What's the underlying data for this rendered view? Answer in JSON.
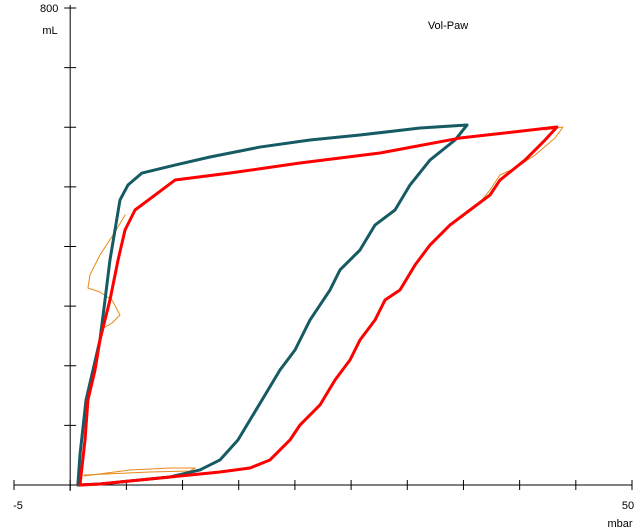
{
  "chart_data": {
    "type": "line",
    "title": "Vol-Paw",
    "x_label": "mbar",
    "y_label": "mL",
    "xlim": [
      -5,
      50
    ],
    "ylim": [
      0,
      800
    ],
    "xticks": [
      -5,
      0,
      5,
      10,
      15,
      20,
      25,
      30,
      35,
      40,
      45,
      50
    ],
    "yticks": [
      0,
      100,
      200,
      300,
      400,
      500,
      600,
      700,
      800
    ],
    "series": [
      {
        "color": "#165a63",
        "width": 3,
        "x": [
          0.69,
          0.87,
          1.41,
          2.03,
          2.65,
          3.1,
          3.54,
          3.99,
          4.43,
          5.14,
          6.39,
          9.33,
          12.44,
          16.89,
          21.34,
          25.79,
          31.13,
          35.32,
          34.25,
          32.02,
          30.24,
          28.91,
          27.13,
          25.79,
          24.01,
          23.12,
          21.34,
          20.01,
          18.67,
          17.34,
          16.0,
          14.93,
          13.33,
          11.55,
          8.88,
          6.21,
          2.65,
          0.69
        ],
        "values": [
          1.7,
          50.3,
          142.5,
          192.8,
          243.2,
          310.2,
          377.3,
          427.6,
          477.9,
          503.1,
          523.2,
          536.6,
          550.1,
          566.8,
          578.6,
          587.0,
          598.7,
          603.7,
          578.6,
          545.0,
          503.1,
          461.2,
          436.0,
          394.1,
          360.6,
          327.0,
          276.7,
          226.4,
          192.9,
          150.9,
          109.0,
          75.5,
          42.0,
          25.2,
          13.4,
          8.4,
          1.7,
          0
        ]
      },
      {
        "color": "#ff0000",
        "width": 3,
        "x": [
          0.87,
          1.32,
          1.58,
          2.21,
          2.65,
          3.54,
          4.26,
          4.88,
          5.77,
          7.55,
          9.33,
          14.22,
          20.45,
          27.57,
          34.69,
          43.32,
          42.26,
          40.48,
          38.25,
          37.36,
          35.58,
          33.8,
          32.02,
          30.69,
          29.35,
          28.02,
          27.13,
          25.79,
          24.9,
          23.57,
          22.23,
          20.45,
          19.56,
          17.78,
          16.0,
          13.33,
          9.77,
          6.21,
          2.65,
          0.87
        ],
        "values": [
          0,
          75.5,
          142.5,
          192.9,
          243.2,
          310.2,
          377.3,
          427.6,
          461.2,
          486.3,
          511.5,
          523.2,
          540.0,
          556.8,
          581.9,
          600.4,
          578.6,
          545.0,
          511.5,
          486.3,
          461.2,
          436.0,
          402.5,
          368.9,
          327.0,
          310.2,
          276.7,
          243.2,
          209.6,
          176.1,
          134.2,
          100.6,
          75.5,
          42.0,
          28.5,
          21.8,
          15.1,
          8.4,
          1.7,
          0
        ]
      },
      {
        "color": "#e8891a",
        "width": 1,
        "x": [
          1.23,
          5.32,
          8.89,
          11.11,
          10.66,
          7.1,
          1.23,
          null,
          4.88,
          3.99,
          2.65,
          1.76,
          1.58,
          2.65,
          3.72,
          4.43,
          3.72,
          2.65,
          null,
          42.26,
          43.86,
          43.15,
          41.37,
          39.59,
          38.25,
          37.36,
          36.29
        ],
        "values": [
          15.1,
          25.2,
          28.5,
          28.5,
          23.5,
          21.8,
          16.8,
          null,
          452.8,
          424.3,
          385.7,
          352.2,
          330.4,
          323.7,
          310.2,
          285.1,
          271.7,
          259.9,
          null,
          595.4,
          600.4,
          581.9,
          553.4,
          531.6,
          519.9,
          494.7,
          469.6
        ]
      }
    ]
  }
}
